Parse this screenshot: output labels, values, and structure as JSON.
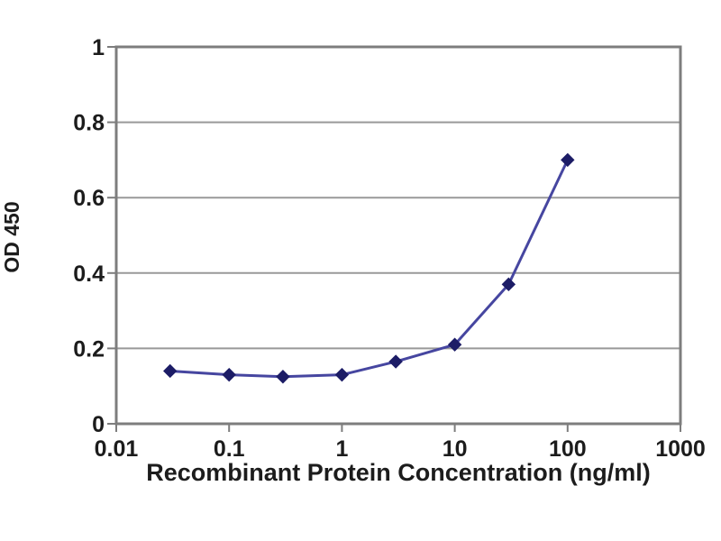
{
  "figure": {
    "background": "#ffffff"
  },
  "chart_data": {
    "type": "line",
    "title": "",
    "xlabel": "Recombinant Protein Concentration (ng/ml)",
    "ylabel": "OD 450",
    "x_scale": "log",
    "xlim": [
      0.01,
      1000
    ],
    "ylim": [
      0,
      1
    ],
    "x_ticks": [
      0.01,
      0.1,
      1,
      10,
      100,
      1000
    ],
    "x_tick_labels": [
      "0.01",
      "0.1",
      "1",
      "10",
      "100",
      "1000"
    ],
    "y_ticks": [
      0,
      0.2,
      0.4,
      0.6,
      0.8,
      1
    ],
    "y_tick_labels": [
      "0",
      "0.2",
      "0.4",
      "0.6",
      "0.8",
      "1"
    ],
    "grid": "horizontal",
    "legend": "none",
    "series": [
      {
        "name": "OD450",
        "marker": "diamond",
        "x": [
          0.03,
          0.1,
          0.3,
          1,
          3,
          10,
          30,
          100
        ],
        "y": [
          0.14,
          0.13,
          0.125,
          0.13,
          0.165,
          0.21,
          0.37,
          0.7
        ]
      }
    ],
    "colors": {
      "line": "#4646a0",
      "marker": "#1c1c66",
      "grid": "#999999",
      "frame": "#7d7d7d",
      "text": "#1c1c1c"
    }
  }
}
